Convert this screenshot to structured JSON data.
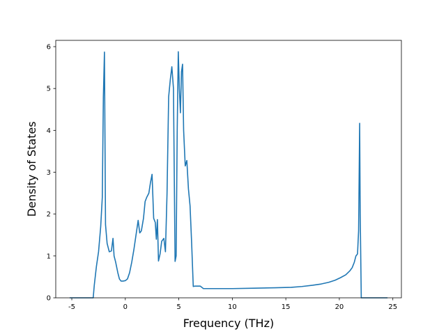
{
  "chart_data": {
    "type": "line",
    "title": "",
    "xlabel": "Frequency (THz)",
    "ylabel": "Density of States",
    "xlim": [
      -6.5,
      25.8
    ],
    "ylim": [
      0,
      6.15
    ],
    "xticks": [
      -5,
      0,
      5,
      10,
      15,
      20,
      25
    ],
    "yticks": [
      0,
      1,
      2,
      3,
      4,
      5,
      6
    ],
    "grid": false,
    "legend": "none",
    "series": [
      {
        "color": "#1f77b4",
        "x": [
          -5.2,
          -3.0,
          -2.9,
          -2.7,
          -2.5,
          -2.3,
          -2.15,
          -2.05,
          -1.95,
          -1.85,
          -1.7,
          -1.5,
          -1.3,
          -1.15,
          -1.05,
          -0.9,
          -0.7,
          -0.55,
          -0.4,
          -0.2,
          0.0,
          0.2,
          0.4,
          0.6,
          0.8,
          1.0,
          1.2,
          1.35,
          1.5,
          1.7,
          1.85,
          2.0,
          2.2,
          2.35,
          2.5,
          2.65,
          2.8,
          2.9,
          3.0,
          3.1,
          3.25,
          3.4,
          3.6,
          3.75,
          3.9,
          4.05,
          4.2,
          4.35,
          4.5,
          4.65,
          4.75,
          4.85,
          4.95,
          5.05,
          5.15,
          5.25,
          5.35,
          5.45,
          5.6,
          5.75,
          5.9,
          6.05,
          6.2,
          6.35,
          6.5,
          6.6,
          7.0,
          7.3,
          8.0,
          10.0,
          12.0,
          14.0,
          15.5,
          16.5,
          17.5,
          18.3,
          19.0,
          19.6,
          20.1,
          20.6,
          21.0,
          21.2,
          21.4,
          21.55,
          21.7,
          21.8,
          21.9,
          21.95,
          22.05,
          22.5,
          24.5
        ],
        "values": [
          0,
          0,
          0.3,
          0.75,
          1.1,
          1.7,
          2.4,
          4.8,
          5.87,
          1.75,
          1.3,
          1.1,
          1.12,
          1.42,
          1.0,
          0.85,
          0.6,
          0.45,
          0.4,
          0.4,
          0.41,
          0.45,
          0.6,
          0.85,
          1.15,
          1.5,
          1.85,
          1.55,
          1.6,
          1.9,
          2.3,
          2.4,
          2.5,
          2.75,
          2.95,
          1.9,
          1.8,
          1.4,
          1.87,
          0.88,
          1.05,
          1.35,
          1.42,
          1.1,
          2.5,
          4.8,
          5.2,
          5.52,
          5.0,
          0.87,
          1.0,
          4.0,
          5.88,
          5.0,
          4.42,
          5.4,
          5.58,
          4.0,
          3.15,
          3.28,
          2.6,
          2.2,
          1.3,
          0.27,
          0.28,
          0.28,
          0.28,
          0.22,
          0.22,
          0.22,
          0.23,
          0.24,
          0.25,
          0.27,
          0.3,
          0.33,
          0.37,
          0.42,
          0.48,
          0.55,
          0.65,
          0.72,
          0.85,
          1.0,
          1.05,
          1.6,
          4.17,
          2.0,
          0,
          0,
          0
        ]
      }
    ]
  }
}
